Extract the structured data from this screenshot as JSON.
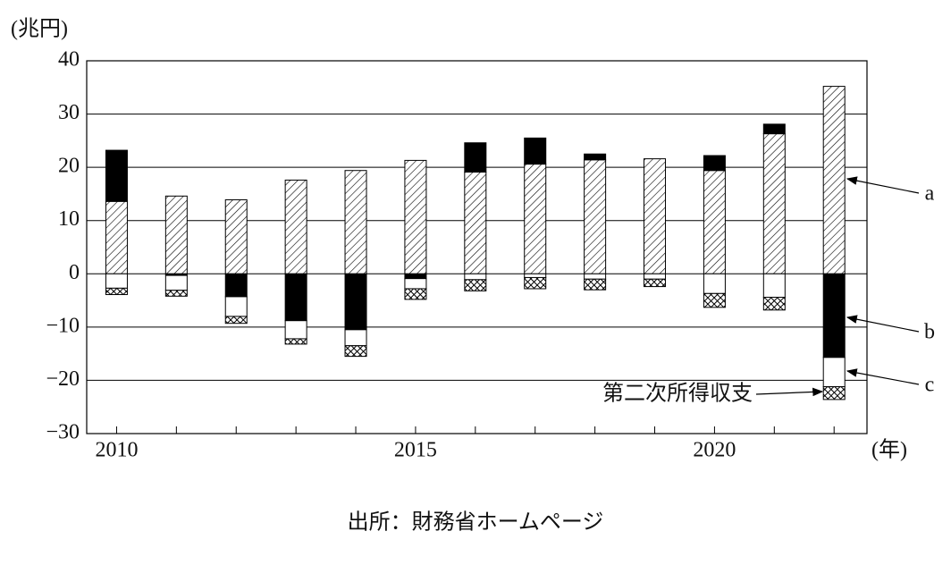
{
  "chart_data": {
    "type": "stacked-bar",
    "y_unit": "(兆円)",
    "x_unit": "(年)",
    "source": "出所：財務省ホームページ",
    "x": [
      2010,
      2011,
      2012,
      2013,
      2014,
      2015,
      2016,
      2017,
      2018,
      2019,
      2020,
      2021,
      2022
    ],
    "xlim": [
      2009.5,
      2022.55
    ],
    "xticks": [
      2010,
      2015,
      2020
    ],
    "ylim": [
      -30,
      40
    ],
    "yticks": [
      {
        "value": -30,
        "label": "−30"
      },
      {
        "value": -20,
        "label": "−20"
      },
      {
        "value": -10,
        "label": "−10"
      },
      0,
      10,
      20,
      30,
      40
    ],
    "grid": true,
    "series": [
      {
        "name": "a",
        "color": "#000",
        "pattern": "diagonal",
        "values": [
          13.6,
          14.6,
          13.9,
          17.6,
          19.4,
          21.3,
          19.1,
          20.6,
          21.4,
          21.6,
          19.4,
          26.3,
          35.2
        ]
      },
      {
        "name": "b",
        "color": "#000",
        "pattern": "solid",
        "values": [
          9.6,
          -0.3,
          -4.3,
          -8.8,
          -10.5,
          -0.9,
          5.5,
          4.9,
          1.1,
          0,
          2.8,
          1.8,
          -15.7
        ]
      },
      {
        "name": "c",
        "color": "#fff",
        "pattern": "solid",
        "values": [
          -2.7,
          -2.8,
          -3.7,
          -3.4,
          -3.0,
          -1.9,
          -1.1,
          -0.7,
          -1.0,
          -1.0,
          -3.7,
          -4.4,
          -5.5
        ]
      },
      {
        "name": "第二次所得収支",
        "color": "#000",
        "pattern": "crosshatch",
        "values": [
          -1.2,
          -1.1,
          -1.3,
          -1.0,
          -2.0,
          -2.0,
          -2.1,
          -2.1,
          -2.0,
          -1.4,
          -2.6,
          -2.4,
          -2.4
        ]
      }
    ]
  }
}
